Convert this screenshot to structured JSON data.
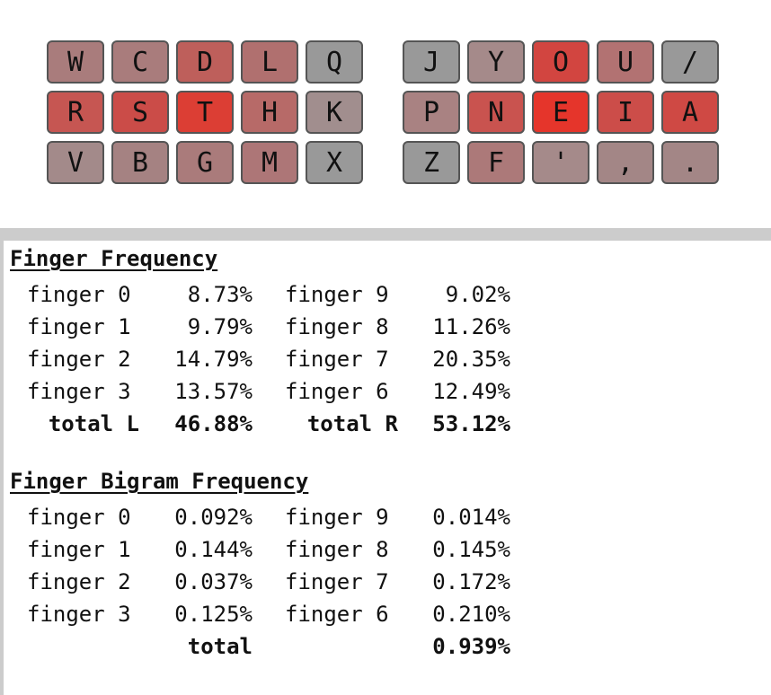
{
  "keyboard": {
    "left_rows": [
      [
        {
          "label": "W",
          "color": "#A97C7C"
        },
        {
          "label": "C",
          "color": "#A97C7C"
        },
        {
          "label": "D",
          "color": "#BE5F5B"
        },
        {
          "label": "L",
          "color": "#B0706F"
        },
        {
          "label": "Q",
          "color": "#999999"
        }
      ],
      [
        {
          "label": "R",
          "color": "#C65652"
        },
        {
          "label": "S",
          "color": "#CB4C48"
        },
        {
          "label": "T",
          "color": "#DC3E34"
        },
        {
          "label": "H",
          "color": "#B76A68"
        },
        {
          "label": "K",
          "color": "#A18E8E"
        }
      ],
      [
        {
          "label": "V",
          "color": "#A38A8A"
        },
        {
          "label": "B",
          "color": "#A58282"
        },
        {
          "label": "G",
          "color": "#AA7B7B"
        },
        {
          "label": "M",
          "color": "#AD7677"
        },
        {
          "label": "X",
          "color": "#999999"
        }
      ]
    ],
    "right_rows": [
      [
        {
          "label": "J",
          "color": "#999999"
        },
        {
          "label": "Y",
          "color": "#A58A8A"
        },
        {
          "label": "O",
          "color": "#D24540"
        },
        {
          "label": "U",
          "color": "#B27272"
        },
        {
          "label": "/",
          "color": "#999999"
        }
      ],
      [
        {
          "label": "P",
          "color": "#A98282"
        },
        {
          "label": "N",
          "color": "#C9534F"
        },
        {
          "label": "E",
          "color": "#E5352B"
        },
        {
          "label": "I",
          "color": "#CC4D49"
        },
        {
          "label": "A",
          "color": "#CF4944"
        }
      ],
      [
        {
          "label": "Z",
          "color": "#999999"
        },
        {
          "label": "F",
          "color": "#AC7979"
        },
        {
          "label": "'",
          "color": "#A58A8A"
        },
        {
          "label": ",",
          "color": "#A38686"
        },
        {
          "label": ".",
          "color": "#A38686"
        }
      ]
    ]
  },
  "finger_frequency": {
    "title": "Finger Frequency",
    "rows": [
      {
        "left_label": "finger 0",
        "left_value": "8.73%",
        "right_label": "finger 9",
        "right_value": "9.02%"
      },
      {
        "left_label": "finger 1",
        "left_value": "9.79%",
        "right_label": "finger 8",
        "right_value": "11.26%"
      },
      {
        "left_label": "finger 2",
        "left_value": "14.79%",
        "right_label": "finger 7",
        "right_value": "20.35%"
      },
      {
        "left_label": "finger 3",
        "left_value": "13.57%",
        "right_label": "finger 6",
        "right_value": "12.49%"
      }
    ],
    "total_left_label": "total L",
    "total_left_value": "46.88%",
    "total_right_label": "total R",
    "total_right_value": "53.12%"
  },
  "finger_bigram_frequency": {
    "title": "Finger Bigram Frequency",
    "rows": [
      {
        "left_label": "finger 0",
        "left_value": "0.092%",
        "right_label": "finger 9",
        "right_value": "0.014%"
      },
      {
        "left_label": "finger 1",
        "left_value": "0.144%",
        "right_label": "finger 8",
        "right_value": "0.145%"
      },
      {
        "left_label": "finger 2",
        "left_value": "0.037%",
        "right_label": "finger 7",
        "right_value": "0.172%"
      },
      {
        "left_label": "finger 3",
        "left_value": "0.125%",
        "right_label": "finger 6",
        "right_value": "0.210%"
      }
    ],
    "total_label": "total",
    "total_value": "0.939%"
  }
}
